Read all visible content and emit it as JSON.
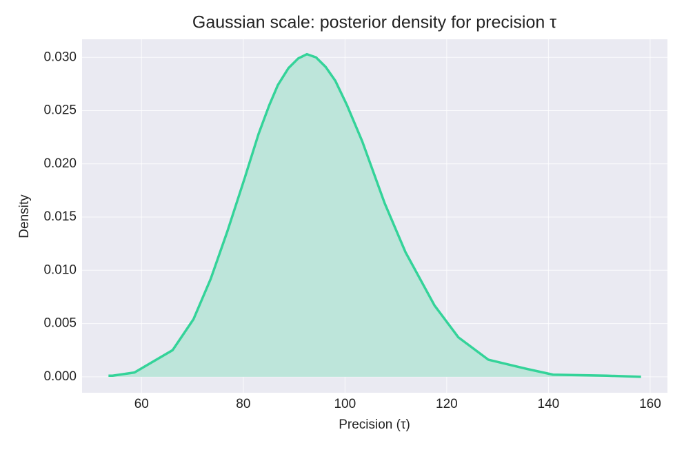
{
  "chart_data": {
    "type": "area",
    "title": "Gaussian scale: posterior density for precision τ",
    "x_label": "Precision (τ)",
    "y_label": "Density",
    "x": [
      53.5,
      54.3,
      58.6,
      66.1,
      70.2,
      73.6,
      76.9,
      80.3,
      83.0,
      85.1,
      86.8,
      88.9,
      90.8,
      92.5,
      94.3,
      96.2,
      98.1,
      100.4,
      103.4,
      107.8,
      111.9,
      117.6,
      122.3,
      128.2,
      135.2,
      140.9,
      151.5,
      158.2
    ],
    "values": [
      0.0001,
      0.0001,
      0.0004,
      0.0025,
      0.0054,
      0.0092,
      0.0137,
      0.0187,
      0.0228,
      0.0255,
      0.0274,
      0.029,
      0.0299,
      0.0303,
      0.03,
      0.0291,
      0.0278,
      0.0255,
      0.0221,
      0.0163,
      0.0117,
      0.0067,
      0.0037,
      0.0016,
      0.0008,
      0.0002,
      0.0001,
      0.0
    ],
    "color": "#34d399",
    "fill_color": "#bde5da",
    "xlim": [
      48.3,
      163.4
    ],
    "ylim": [
      -0.0015,
      0.0317
    ],
    "xticks": [
      60,
      80,
      100,
      120,
      140,
      160
    ],
    "yticks": [
      {
        "value": 0,
        "label": "0.000"
      },
      {
        "value": 0.005,
        "label": "0.005"
      },
      {
        "value": 0.01,
        "label": "0.010"
      },
      {
        "value": 0.015,
        "label": "0.015"
      },
      {
        "value": 0.02,
        "label": "0.020"
      },
      {
        "value": 0.025,
        "label": "0.025"
      },
      {
        "value": 0.03,
        "label": "0.030"
      }
    ],
    "grid": true
  }
}
